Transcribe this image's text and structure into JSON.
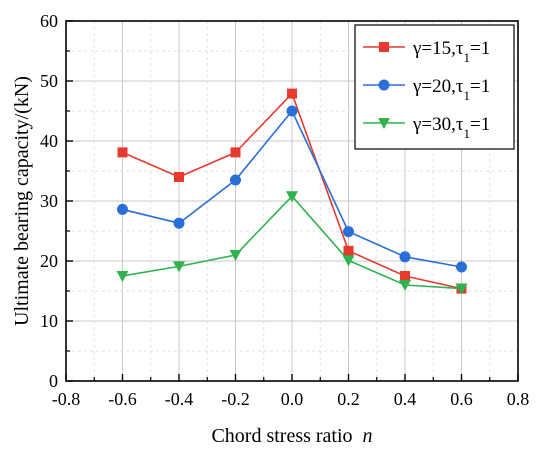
{
  "chart_data": {
    "type": "line",
    "title": "",
    "xlabel": "Chord stress ratio",
    "xlabel_var": "n",
    "ylabel": "Ultimate bearing capacity/(kN)",
    "xlim": [
      -0.8,
      0.8
    ],
    "ylim": [
      0,
      60
    ],
    "xticks": [
      "-0.8",
      "-0.6",
      "-0.4",
      "-0.2",
      "0.0",
      "0.2",
      "0.4",
      "0.6",
      "0.8"
    ],
    "yticks": [
      "0",
      "10",
      "20",
      "30",
      "40",
      "50",
      "60"
    ],
    "grid": true,
    "legend_position": "top-right",
    "x": [
      -0.6,
      -0.4,
      -0.2,
      0.0,
      0.2,
      0.4,
      0.6
    ],
    "series": [
      {
        "name": "γ=15,τ1=1",
        "legend_main": "γ=15,τ",
        "legend_sub": "1",
        "legend_tail": "=1",
        "color": "#e8392f",
        "marker": "square",
        "values": [
          38.1,
          34.0,
          38.1,
          47.9,
          21.7,
          17.5,
          15.4
        ]
      },
      {
        "name": "γ=20,τ1=1",
        "legend_main": "γ=20,τ",
        "legend_sub": "1",
        "legend_tail": "=1",
        "color": "#2a6fd8",
        "marker": "circle",
        "values": [
          28.6,
          26.3,
          33.5,
          45.0,
          24.9,
          20.7,
          19.0
        ]
      },
      {
        "name": "γ=30,τ1=1",
        "legend_main": "γ=30,τ",
        "legend_sub": "1",
        "legend_tail": "=1",
        "color": "#2fb34f",
        "marker": "triangle-down",
        "values": [
          17.5,
          19.1,
          21.0,
          30.8,
          20.1,
          16.0,
          15.4
        ]
      }
    ]
  }
}
